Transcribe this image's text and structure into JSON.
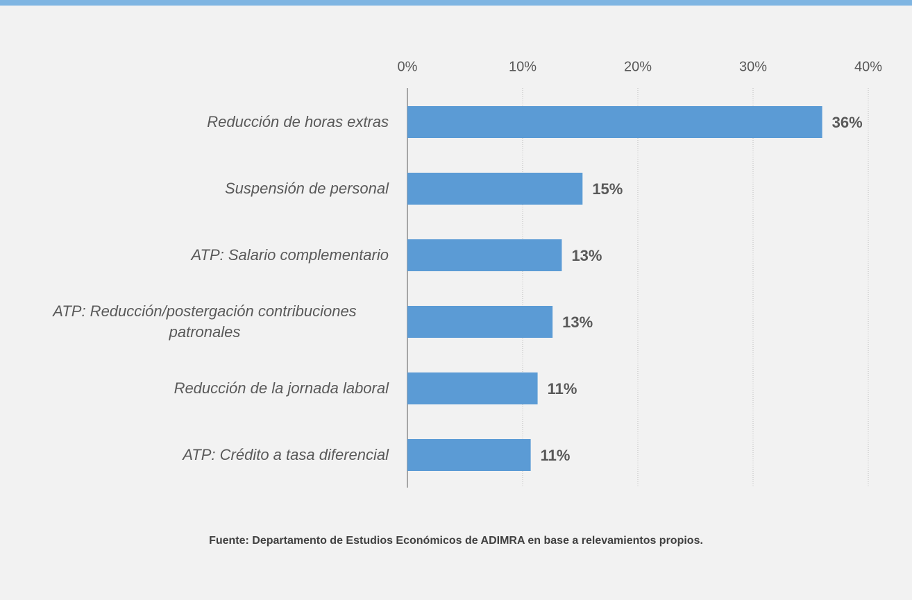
{
  "chart_data": {
    "type": "bar",
    "orientation": "horizontal",
    "categories": [
      "Reducción de horas extras",
      "Suspensión de personal",
      "ATP: Salario complementario",
      "ATP: Reducción/postergación contribuciones patronales",
      "Reducción de la jornada laboral",
      "ATP: Crédito a tasa diferencial"
    ],
    "values": [
      36,
      15.2,
      13.4,
      12.6,
      11.3,
      10.7
    ],
    "value_labels": [
      "36%",
      "15%",
      "13%",
      "13%",
      "11%",
      "11%"
    ],
    "color": "#5b9bd5",
    "xlim": [
      0,
      40
    ],
    "xticks": [
      {
        "value": 0,
        "label": "0%"
      },
      {
        "value": 10,
        "label": "10%"
      },
      {
        "value": 20,
        "label": "20%"
      },
      {
        "value": 30,
        "label": "30%"
      },
      {
        "value": 40,
        "label": "40%"
      }
    ],
    "grid": true,
    "source": "Fuente: Departamento de Estudios Económicos de ADIMRA en base a relevamientos propios."
  }
}
